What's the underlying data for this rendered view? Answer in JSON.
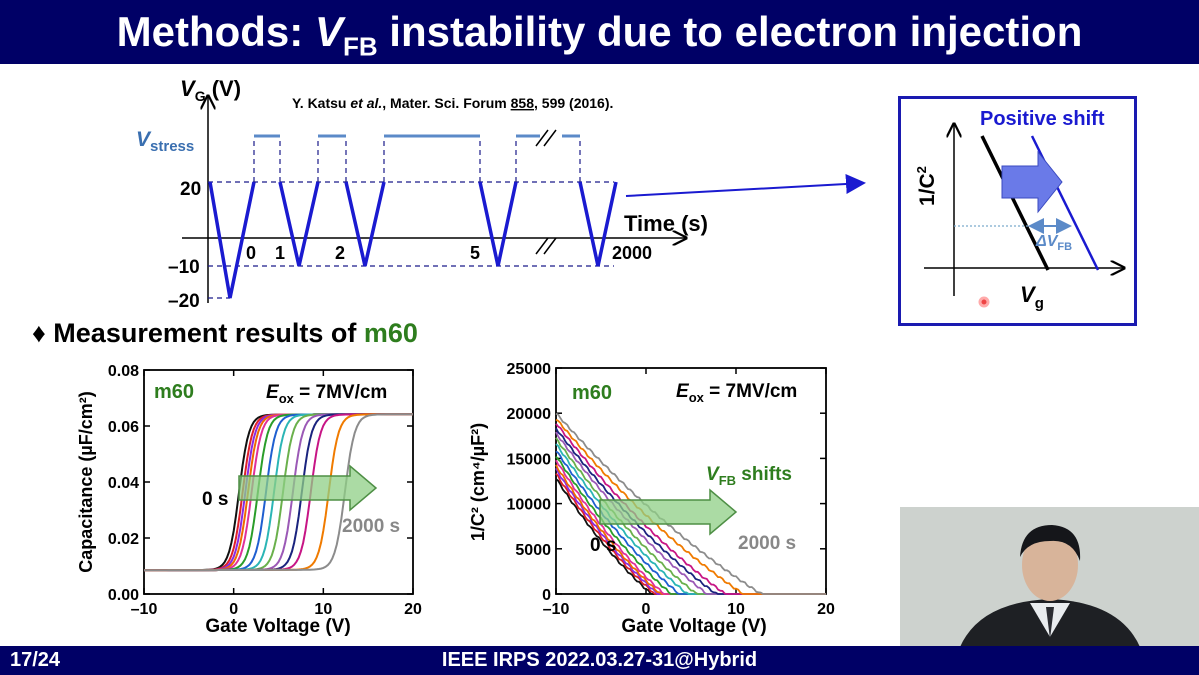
{
  "slide": {
    "title_prefix": "Methods: ",
    "title_var": "V",
    "title_sub": "FB",
    "title_suffix": " instability due to electron injection",
    "page": "17/24",
    "conference": "IEEE IRPS 2022.03.27-31@Hybrid",
    "reference_prefix": "Y. Katsu ",
    "reference_etal": "et al.",
    "reference_mid": ", Mater. Sci. Forum ",
    "reference_vol": "858",
    "reference_suffix": ", 599 (2016).",
    "section_bullet": "♦",
    "section_text": "Measurement results of ",
    "section_sample": "m60"
  },
  "waveform": {
    "ylabel_var": "V",
    "ylabel_sub": "G",
    "ylabel_unit": " (V)",
    "vstress_var": "V",
    "vstress_sub": "stress",
    "xlabel": "Time (s)",
    "y_ticks": [
      "20",
      "–10",
      "–20"
    ],
    "time_marks": [
      "0",
      "1",
      "2",
      "5",
      "2000"
    ]
  },
  "inset": {
    "label": "Positive shift",
    "ylabel": "1/C",
    "ylabel_sup": "2",
    "xlabel_var": "V",
    "xlabel_sub": "g",
    "delta_var": "ΔV",
    "delta_sub": "FB"
  },
  "plot_left": {
    "sample": "m60",
    "eox_var": "E",
    "eox_sub": "ox",
    "eox_value": " = 7MV/cm",
    "start_label": "0 s",
    "end_label": "2000 s",
    "ylabel": "Capacitance (µF/cm²)",
    "xlabel": "Gate Voltage (V)",
    "x_ticks": [
      "–10",
      "0",
      "10",
      "20"
    ],
    "y_ticks": [
      "0.00",
      "0.02",
      "0.04",
      "0.06",
      "0.08"
    ]
  },
  "plot_right": {
    "sample": "m60",
    "eox_var": "E",
    "eox_sub": "ox",
    "eox_value": " = 7MV/cm",
    "shift_var": "V",
    "shift_sub": "FB",
    "shift_text": " shifts",
    "start_label": "0 s",
    "end_label": "2000 s",
    "ylabel": "1/C² (cm⁴/µF²)",
    "xlabel": "Gate Voltage (V)",
    "x_ticks": [
      "–10",
      "0",
      "10",
      "20"
    ],
    "y_ticks": [
      "0",
      "5000",
      "10000",
      "15000",
      "20000",
      "25000"
    ]
  },
  "chart_data": [
    {
      "type": "line",
      "title": "",
      "xlabel": "Gate Voltage (V)",
      "ylabel": "Capacitance (µF/cm²)",
      "xlim": [
        -10,
        20
      ],
      "ylim": [
        0,
        0.08
      ],
      "annotations": [
        "m60",
        "Eox = 7MV/cm",
        "0 s",
        "2000 s"
      ],
      "series_model": "sigmoid C-V curves, Cmin≈0.008, Cmax≈0.064",
      "series": [
        {
          "color": "#111111",
          "midpoint_V": 0.6
        },
        {
          "color": "#e0202a",
          "midpoint_V": 1.0
        },
        {
          "color": "#8a2be2",
          "midpoint_V": 1.3
        },
        {
          "color": "#f06a00",
          "midpoint_V": 1.6
        },
        {
          "color": "#e0309a",
          "midpoint_V": 2.0
        },
        {
          "color": "#2a9d2a",
          "midpoint_V": 2.7
        },
        {
          "color": "#1f5fd0",
          "midpoint_V": 3.6
        },
        {
          "color": "#2bb5b5",
          "midpoint_V": 4.5
        },
        {
          "color": "#6ab04c",
          "midpoint_V": 5.5
        },
        {
          "color": "#9b59b6",
          "midpoint_V": 6.6
        },
        {
          "color": "#1a237e",
          "midpoint_V": 7.6
        },
        {
          "color": "#c71585",
          "midpoint_V": 8.6
        },
        {
          "color": "#f07b00",
          "midpoint_V": 10.6
        },
        {
          "color": "#8c8c8c",
          "midpoint_V": 12.4
        }
      ]
    },
    {
      "type": "line",
      "title": "",
      "xlabel": "Gate Voltage (V)",
      "ylabel": "1/C² (cm⁴/µF²)",
      "xlim": [
        -10,
        20
      ],
      "ylim": [
        0,
        25000
      ],
      "annotations": [
        "m60",
        "Eox = 7MV/cm",
        "VFB shifts",
        "0 s",
        "2000 s"
      ],
      "series_model": "decreasing curves from (-10, y0) to zero at Vfb",
      "series": [
        {
          "color": "#111111",
          "y_at_minus10": 12800,
          "vfb": 0.6
        },
        {
          "color": "#e0202a",
          "y_at_minus10": 13300,
          "vfb": 1.0
        },
        {
          "color": "#8a2be2",
          "y_at_minus10": 13800,
          "vfb": 1.3
        },
        {
          "color": "#f06a00",
          "y_at_minus10": 14200,
          "vfb": 1.6
        },
        {
          "color": "#e0309a",
          "y_at_minus10": 14800,
          "vfb": 2.0
        },
        {
          "color": "#2a9d2a",
          "y_at_minus10": 15300,
          "vfb": 2.8
        },
        {
          "color": "#1f5fd0",
          "y_at_minus10": 15900,
          "vfb": 3.7
        },
        {
          "color": "#2bb5b5",
          "y_at_minus10": 16600,
          "vfb": 4.6
        },
        {
          "color": "#6ab04c",
          "y_at_minus10": 17200,
          "vfb": 5.6
        },
        {
          "color": "#9b59b6",
          "y_at_minus10": 17800,
          "vfb": 6.8
        },
        {
          "color": "#1a237e",
          "y_at_minus10": 18300,
          "vfb": 7.8
        },
        {
          "color": "#c71585",
          "y_at_minus10": 18900,
          "vfb": 8.8
        },
        {
          "color": "#f07b00",
          "y_at_minus10": 19400,
          "vfb": 10.8
        },
        {
          "color": "#8c8c8c",
          "y_at_minus10": 20000,
          "vfb": 12.8
        }
      ]
    }
  ]
}
